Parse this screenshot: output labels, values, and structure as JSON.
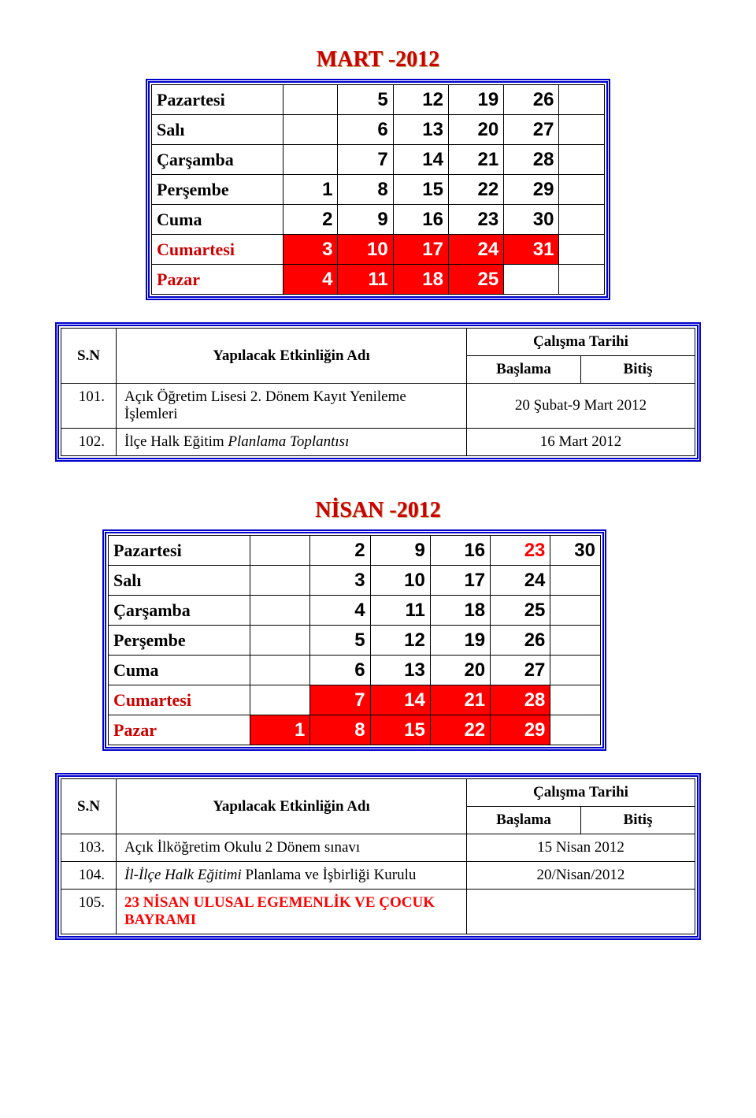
{
  "month1": {
    "title": "MART -2012",
    "title_color": "#cc0000",
    "title_shadow": "#bfa060",
    "days": [
      "Pazartesi",
      "Salı",
      "Çarşamba",
      "Perşembe",
      "Cuma",
      "Cumartesi",
      "Pazar"
    ],
    "grid": [
      [
        "",
        "5",
        "12",
        "19",
        "26",
        ""
      ],
      [
        "",
        "6",
        "13",
        "20",
        "27",
        ""
      ],
      [
        "",
        "7",
        "14",
        "21",
        "28",
        ""
      ],
      [
        "1",
        "8",
        "15",
        "22",
        "29",
        ""
      ],
      [
        "2",
        "9",
        "16",
        "23",
        "30",
        ""
      ],
      [
        "3",
        "10",
        "17",
        "24",
        "31",
        ""
      ],
      [
        "4",
        "11",
        "18",
        "25",
        "",
        ""
      ]
    ],
    "redrows": [
      5,
      6
    ],
    "holidays": []
  },
  "events1": {
    "head_sn": "S.N",
    "head_name": "Yapılacak Etkinliğin Adı",
    "head_tarih": "Çalışma Tarihi",
    "head_baslama": "Başlama",
    "head_bitis": "Bitiş",
    "rows": [
      {
        "sn": "101.",
        "name": "Açık Öğretim Lisesi 2. Dönem Kayıt Yenileme İşlemleri",
        "date": "20 Şubat-9 Mart 2012",
        "italic": false,
        "red": false
      },
      {
        "sn": "102.",
        "name": "İlçe Halk Eğitim Planlama Toplantısı",
        "date": "16 Mart 2012",
        "italic": true,
        "red": false
      }
    ]
  },
  "month2": {
    "title": "NİSAN -2012",
    "title_color": "#cc0000",
    "title_shadow": "#bfa060",
    "days": [
      "Pazartesi",
      "Salı",
      "Çarşamba",
      "Perşembe",
      "Cuma",
      "Cumartesi",
      "Pazar"
    ],
    "grid": [
      [
        "",
        "2",
        "9",
        "16",
        "23",
        "30"
      ],
      [
        "",
        "3",
        "10",
        "17",
        "24",
        ""
      ],
      [
        "",
        "4",
        "11",
        "18",
        "25",
        ""
      ],
      [
        "",
        "5",
        "12",
        "19",
        "26",
        ""
      ],
      [
        "",
        "6",
        "13",
        "20",
        "27",
        ""
      ],
      [
        "",
        "7",
        "14",
        "21",
        "28",
        ""
      ],
      [
        "1",
        "8",
        "15",
        "22",
        "29",
        ""
      ]
    ],
    "redrows": [
      5,
      6
    ],
    "holidays": [
      {
        "r": 0,
        "c": 4
      }
    ]
  },
  "events2": {
    "head_sn": "S.N",
    "head_name": "Yapılacak Etkinliğin Adı",
    "head_tarih": "Çalışma Tarihi",
    "head_baslama": "Başlama",
    "head_bitis": "Bitiş",
    "rows": [
      {
        "sn": "103.",
        "name": "Açık İlköğretim Okulu 2 Dönem sınavı",
        "date": "15 Nisan 2012",
        "italic": false,
        "red": false
      },
      {
        "sn": "104.",
        "name": "İl-İlçe Halk Eğitimi Planlama ve İşbirliği Kurulu",
        "date": "20/Nisan/2012",
        "italic": true,
        "red": false
      },
      {
        "sn": "105.",
        "name": "23 NİSAN ULUSAL EGEMENLİK VE ÇOCUK BAYRAMI",
        "date": "",
        "italic": false,
        "red": true
      }
    ]
  },
  "colors": {
    "frame": "#0000cc",
    "red_bg": "#ff0000",
    "red_txt": "#ff0000",
    "dayname_red": "#cc0000"
  }
}
